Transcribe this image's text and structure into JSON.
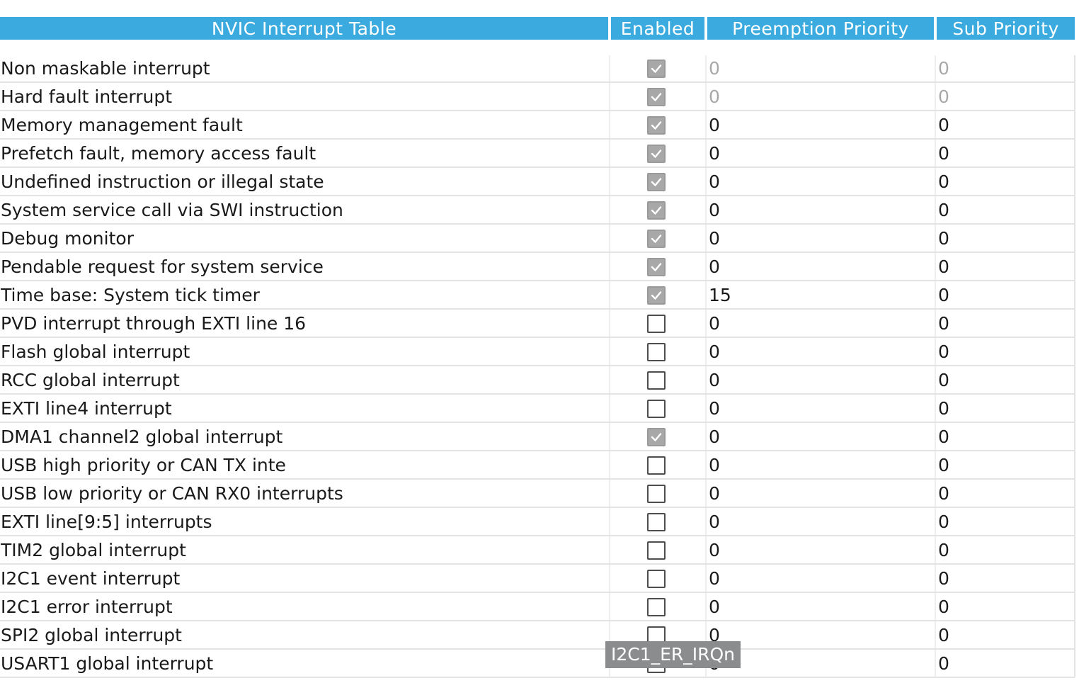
{
  "table": {
    "headers": {
      "name": "NVIC Interrupt Table",
      "enabled": "Enabled",
      "preemption": "Preemption Priority",
      "sub": "Sub Priority"
    },
    "rows": [
      {
        "name": "Non maskable interrupt",
        "enabled": true,
        "preemption": "0",
        "sub": "0",
        "readonly": true
      },
      {
        "name": "Hard fault interrupt",
        "enabled": true,
        "preemption": "0",
        "sub": "0",
        "readonly": true
      },
      {
        "name": "Memory management fault",
        "enabled": true,
        "preemption": "0",
        "sub": "0",
        "readonly": false
      },
      {
        "name": "Prefetch fault, memory access fault",
        "enabled": true,
        "preemption": "0",
        "sub": "0",
        "readonly": false
      },
      {
        "name": "Undefined instruction or illegal state",
        "enabled": true,
        "preemption": "0",
        "sub": "0",
        "readonly": false
      },
      {
        "name": "System service call via SWI instruction",
        "enabled": true,
        "preemption": "0",
        "sub": "0",
        "readonly": false
      },
      {
        "name": "Debug monitor",
        "enabled": true,
        "preemption": "0",
        "sub": "0",
        "readonly": false
      },
      {
        "name": "Pendable request for system service",
        "enabled": true,
        "preemption": "0",
        "sub": "0",
        "readonly": false
      },
      {
        "name": "Time base: System tick timer",
        "enabled": true,
        "preemption": "15",
        "sub": "0",
        "readonly": false
      },
      {
        "name": "PVD interrupt through EXTI line 16",
        "enabled": false,
        "preemption": "0",
        "sub": "0",
        "readonly": false
      },
      {
        "name": "Flash global interrupt",
        "enabled": false,
        "preemption": "0",
        "sub": "0",
        "readonly": false
      },
      {
        "name": "RCC global interrupt",
        "enabled": false,
        "preemption": "0",
        "sub": "0",
        "readonly": false
      },
      {
        "name": "EXTI line4 interrupt",
        "enabled": false,
        "preemption": "0",
        "sub": "0",
        "readonly": false
      },
      {
        "name": "DMA1 channel2 global interrupt",
        "enabled": true,
        "preemption": "0",
        "sub": "0",
        "readonly": false
      },
      {
        "name": "USB high priority or CAN TX inte",
        "enabled": false,
        "preemption": "0",
        "sub": "0",
        "readonly": false
      },
      {
        "name": "USB low priority or CAN RX0 interrupts",
        "enabled": false,
        "preemption": "0",
        "sub": "0",
        "readonly": false
      },
      {
        "name": "EXTI line[9:5] interrupts",
        "enabled": false,
        "preemption": "0",
        "sub": "0",
        "readonly": false
      },
      {
        "name": "TIM2 global interrupt",
        "enabled": false,
        "preemption": "0",
        "sub": "0",
        "readonly": false
      },
      {
        "name": "I2C1 event interrupt",
        "enabled": false,
        "preemption": "0",
        "sub": "0",
        "readonly": false
      },
      {
        "name": "I2C1 error interrupt",
        "enabled": false,
        "preemption": "0",
        "sub": "0",
        "readonly": false
      },
      {
        "name": "SPI2 global interrupt",
        "enabled": false,
        "preemption": "0",
        "sub": "0",
        "readonly": false
      },
      {
        "name": "USART1 global interrupt",
        "enabled": false,
        "preemption": "0",
        "sub": "0",
        "readonly": false
      }
    ]
  },
  "tooltip": {
    "text": "I2C1_ER_IRQn"
  },
  "colors": {
    "header_bg": "#3aaadf",
    "header_text": "#ffffff",
    "grid_line": "#e3e3e3",
    "disabled_text": "#a8a8a8",
    "checkbox_checked": "#a8a8a8",
    "tooltip_bg": "#8a8c8e"
  }
}
